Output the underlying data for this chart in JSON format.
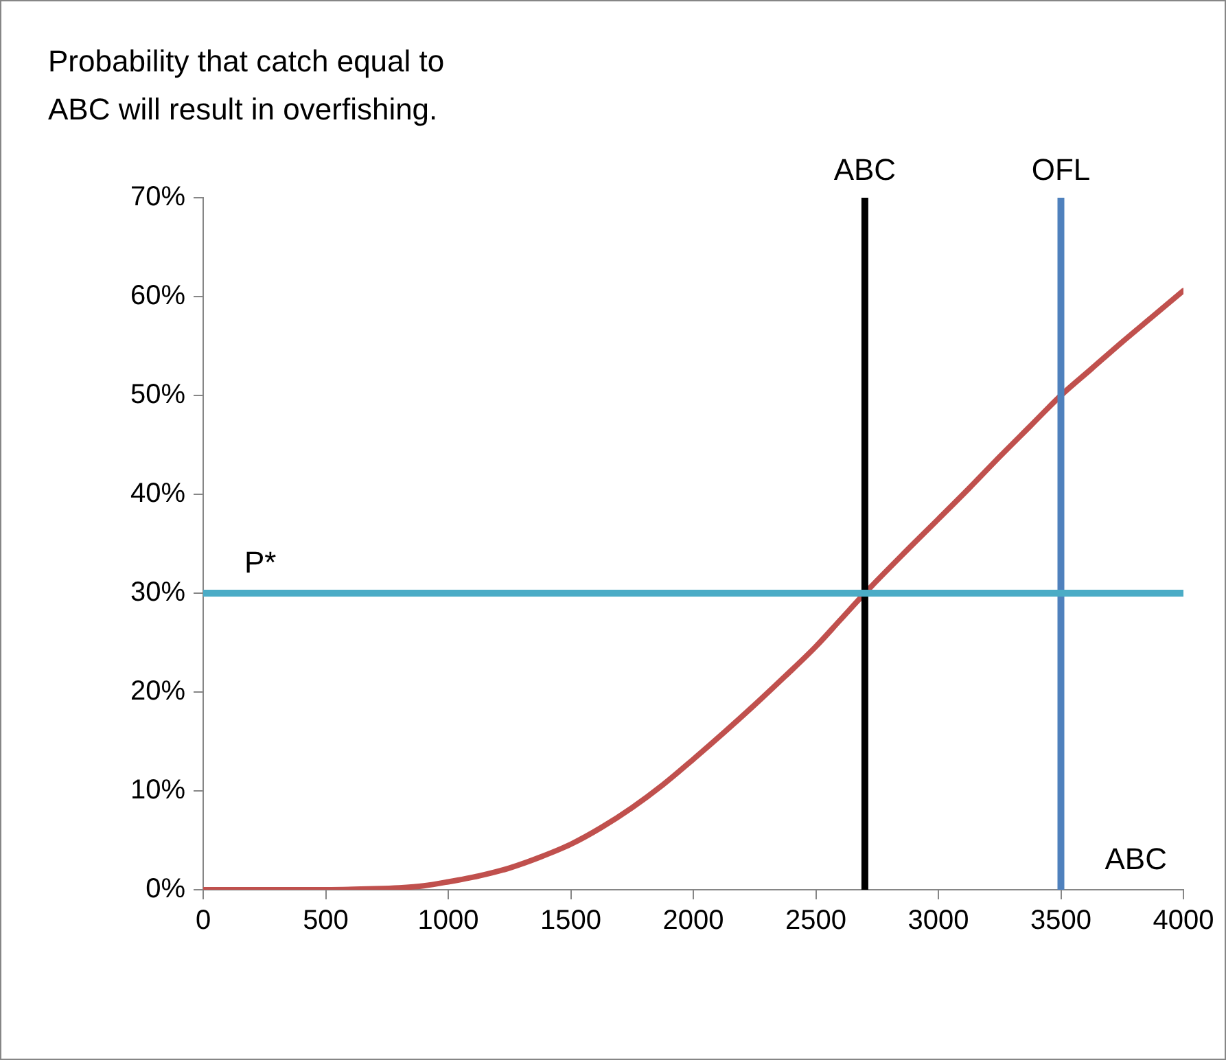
{
  "chart_data": {
    "type": "line",
    "title": "Probability that catch equal to\nABC will result in overfishing.",
    "xlabel": "ABC",
    "series": [
      {
        "color": "#c0504d",
        "x": [
          0,
          250,
          500,
          700,
          800,
          900,
          1000,
          1125,
          1250,
          1375,
          1500,
          1625,
          1750,
          1875,
          2000,
          2125,
          2250,
          2375,
          2500,
          2600,
          2700,
          2850,
          3000,
          3125,
          3250,
          3375,
          3500,
          3625,
          3750,
          3875,
          4000
        ],
        "values": [
          0,
          0,
          0,
          0.1,
          0.2,
          0.4,
          0.8,
          1.4,
          2.2,
          3.3,
          4.6,
          6.3,
          8.3,
          10.6,
          13.2,
          15.9,
          18.7,
          21.6,
          24.6,
          27.3,
          30,
          33.8,
          37.5,
          40.6,
          43.8,
          46.9,
          50,
          52.7,
          55.4,
          58,
          60.6
        ]
      }
    ],
    "xlim": [
      0,
      4000
    ],
    "xticks": [
      0,
      500,
      1000,
      1500,
      2000,
      2500,
      3000,
      3500,
      4000
    ],
    "ylim": [
      0,
      70
    ],
    "yticks": [
      {
        "value": 0,
        "label": "0%"
      },
      {
        "value": 10,
        "label": "10%"
      },
      {
        "value": 20,
        "label": "20%"
      },
      {
        "value": 30,
        "label": "30%"
      },
      {
        "value": 40,
        "label": "40%"
      },
      {
        "value": 50,
        "label": "50%"
      },
      {
        "value": 60,
        "label": "60%"
      },
      {
        "value": 70,
        "label": "70%"
      }
    ],
    "ref_lines": [
      {
        "axis": "x",
        "value": 2700,
        "label": "ABC",
        "color": "#000000"
      },
      {
        "axis": "x",
        "value": 3500,
        "label": "OFL",
        "color": "#4f81bd"
      },
      {
        "axis": "y",
        "value": 30,
        "label": "P*",
        "color": "#4bacc6"
      }
    ],
    "grid": false,
    "legend": false,
    "marker": "none",
    "line_style": "solid"
  }
}
